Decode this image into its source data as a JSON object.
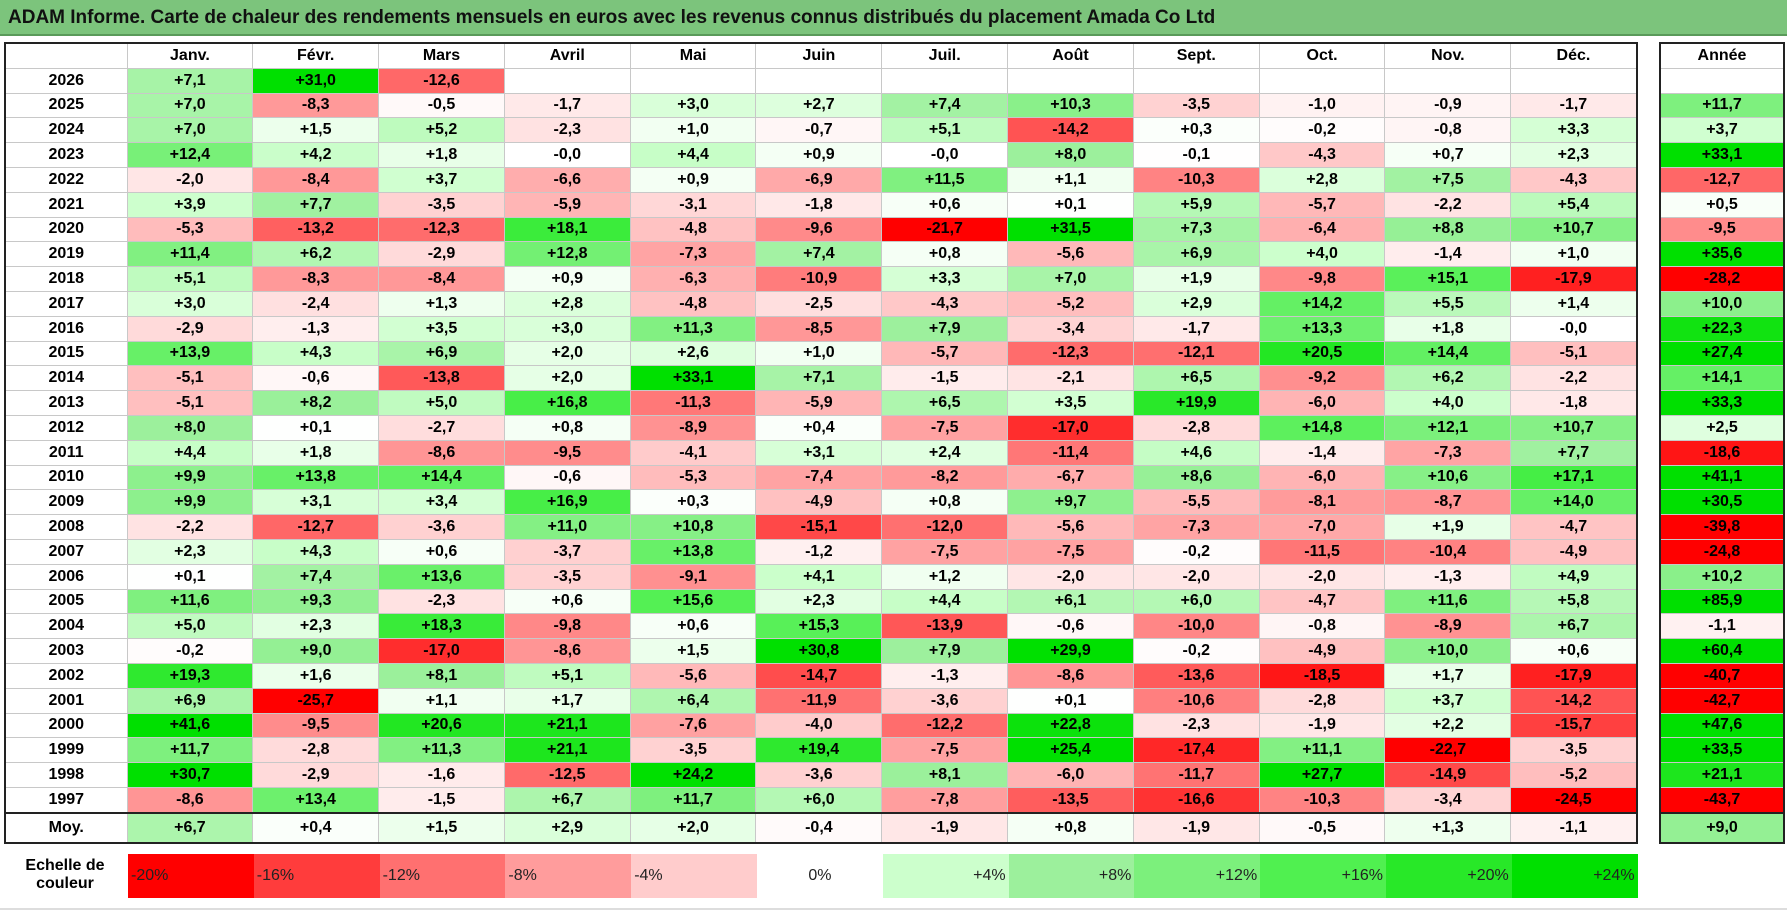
{
  "title": "ADAM Informe. Carte de chaleur des rendements mensuels en euros avec les revenus connus distribués du placement Amada Co Ltd",
  "chart_data": {
    "type": "heatmap",
    "title": "ADAM Informe. Carte de chaleur des rendements mensuels en euros avec les revenus connus distribués du placement Amada Co Ltd",
    "months": [
      "Janv.",
      "Févr.",
      "Mars",
      "Avril",
      "Mai",
      "Juin",
      "Juil.",
      "Août",
      "Sept.",
      "Oct.",
      "Nov.",
      "Déc."
    ],
    "annual_header": "Année",
    "rows": [
      {
        "year": "2026",
        "values": [
          "+7,1",
          "+31,0",
          "-12,6",
          "",
          "",
          "",
          "",
          "",
          "",
          "",
          "",
          ""
        ],
        "annual": ""
      },
      {
        "year": "2025",
        "values": [
          "+7,0",
          "-8,3",
          "-0,5",
          "-1,7",
          "+3,0",
          "+2,7",
          "+7,4",
          "+10,3",
          "-3,5",
          "-1,0",
          "-0,9",
          "-1,7"
        ],
        "annual": "+11,7"
      },
      {
        "year": "2024",
        "values": [
          "+7,0",
          "+1,5",
          "+5,2",
          "-2,3",
          "+1,0",
          "-0,7",
          "+5,1",
          "-14,2",
          "+0,3",
          "-0,2",
          "-0,8",
          "+3,3"
        ],
        "annual": "+3,7"
      },
      {
        "year": "2023",
        "values": [
          "+12,4",
          "+4,2",
          "+1,8",
          "-0,0",
          "+4,4",
          "+0,9",
          "-0,0",
          "+8,0",
          "-0,1",
          "-4,3",
          "+0,7",
          "+2,3"
        ],
        "annual": "+33,1"
      },
      {
        "year": "2022",
        "values": [
          "-2,0",
          "-8,4",
          "+3,7",
          "-6,6",
          "+0,9",
          "-6,9",
          "+11,5",
          "+1,1",
          "-10,3",
          "+2,8",
          "+7,5",
          "-4,3"
        ],
        "annual": "-12,7"
      },
      {
        "year": "2021",
        "values": [
          "+3,9",
          "+7,7",
          "-3,5",
          "-5,9",
          "-3,1",
          "-1,8",
          "+0,6",
          "+0,1",
          "+5,9",
          "-5,7",
          "-2,2",
          "+5,4"
        ],
        "annual": "+0,5"
      },
      {
        "year": "2020",
        "values": [
          "-5,3",
          "-13,2",
          "-12,3",
          "+18,1",
          "-4,8",
          "-9,6",
          "-21,7",
          "+31,5",
          "+7,3",
          "-6,4",
          "+8,8",
          "+10,7"
        ],
        "annual": "-9,5"
      },
      {
        "year": "2019",
        "values": [
          "+11,4",
          "+6,2",
          "-2,9",
          "+12,8",
          "-7,3",
          "+7,4",
          "+0,8",
          "-5,6",
          "+6,9",
          "+4,0",
          "-1,4",
          "+1,0"
        ],
        "annual": "+35,6"
      },
      {
        "year": "2018",
        "values": [
          "+5,1",
          "-8,3",
          "-8,4",
          "+0,9",
          "-6,3",
          "-10,9",
          "+3,3",
          "+7,0",
          "+1,9",
          "-9,8",
          "+15,1",
          "-17,9"
        ],
        "annual": "-28,2"
      },
      {
        "year": "2017",
        "values": [
          "+3,0",
          "-2,4",
          "+1,3",
          "+2,8",
          "-4,8",
          "-2,5",
          "-4,3",
          "-5,2",
          "+2,9",
          "+14,2",
          "+5,5",
          "+1,4"
        ],
        "annual": "+10,0"
      },
      {
        "year": "2016",
        "values": [
          "-2,9",
          "-1,3",
          "+3,5",
          "+3,0",
          "+11,3",
          "-8,5",
          "+7,9",
          "-3,4",
          "-1,7",
          "+13,3",
          "+1,8",
          "-0,0"
        ],
        "annual": "+22,3"
      },
      {
        "year": "2015",
        "values": [
          "+13,9",
          "+4,3",
          "+6,9",
          "+2,0",
          "+2,6",
          "+1,0",
          "-5,7",
          "-12,3",
          "-12,1",
          "+20,5",
          "+14,4",
          "-5,1"
        ],
        "annual": "+27,4"
      },
      {
        "year": "2014",
        "values": [
          "-5,1",
          "-0,6",
          "-13,8",
          "+2,0",
          "+33,1",
          "+7,1",
          "-1,5",
          "-2,1",
          "+6,5",
          "-9,2",
          "+6,2",
          "-2,2"
        ],
        "annual": "+14,1"
      },
      {
        "year": "2013",
        "values": [
          "-5,1",
          "+8,2",
          "+5,0",
          "+16,8",
          "-11,3",
          "-5,9",
          "+6,5",
          "+3,5",
          "+19,9",
          "-6,0",
          "+4,0",
          "-1,8"
        ],
        "annual": "+33,3"
      },
      {
        "year": "2012",
        "values": [
          "+8,0",
          "+0,1",
          "-2,7",
          "+0,8",
          "-8,9",
          "+0,4",
          "-7,5",
          "-17,0",
          "-2,8",
          "+14,8",
          "+12,1",
          "+10,7"
        ],
        "annual": "+2,5"
      },
      {
        "year": "2011",
        "values": [
          "+4,4",
          "+1,8",
          "-8,6",
          "-9,5",
          "-4,1",
          "+3,1",
          "+2,4",
          "-11,4",
          "+4,6",
          "-1,4",
          "-7,3",
          "+7,7"
        ],
        "annual": "-18,6"
      },
      {
        "year": "2010",
        "values": [
          "+9,9",
          "+13,8",
          "+14,4",
          "-0,6",
          "-5,3",
          "-7,4",
          "-8,2",
          "-6,7",
          "+8,6",
          "-6,0",
          "+10,6",
          "+17,1"
        ],
        "annual": "+41,1"
      },
      {
        "year": "2009",
        "values": [
          "+9,9",
          "+3,1",
          "+3,4",
          "+16,9",
          "+0,3",
          "-4,9",
          "+0,8",
          "+9,7",
          "-5,5",
          "-8,1",
          "-8,7",
          "+14,0"
        ],
        "annual": "+30,5"
      },
      {
        "year": "2008",
        "values": [
          "-2,2",
          "-12,7",
          "-3,6",
          "+11,0",
          "+10,8",
          "-15,1",
          "-12,0",
          "-5,6",
          "-7,3",
          "-7,0",
          "+1,9",
          "-4,7"
        ],
        "annual": "-39,8"
      },
      {
        "year": "2007",
        "values": [
          "+2,3",
          "+4,3",
          "+0,6",
          "-3,7",
          "+13,8",
          "-1,2",
          "-7,5",
          "-7,5",
          "-0,2",
          "-11,5",
          "-10,4",
          "-4,9"
        ],
        "annual": "-24,8"
      },
      {
        "year": "2006",
        "values": [
          "+0,1",
          "+7,4",
          "+13,6",
          "-3,5",
          "-9,1",
          "+4,1",
          "+1,2",
          "-2,0",
          "-2,0",
          "-2,0",
          "-1,3",
          "+4,9"
        ],
        "annual": "+10,2"
      },
      {
        "year": "2005",
        "values": [
          "+11,6",
          "+9,3",
          "-2,3",
          "+0,6",
          "+15,6",
          "+2,3",
          "+4,4",
          "+6,1",
          "+6,0",
          "-4,7",
          "+11,6",
          "+5,8"
        ],
        "annual": "+85,9"
      },
      {
        "year": "2004",
        "values": [
          "+5,0",
          "+2,3",
          "+18,3",
          "-9,8",
          "+0,6",
          "+15,3",
          "-13,9",
          "-0,6",
          "-10,0",
          "-0,8",
          "-8,9",
          "+6,7"
        ],
        "annual": "-1,1"
      },
      {
        "year": "2003",
        "values": [
          "-0,2",
          "+9,0",
          "-17,0",
          "-8,6",
          "+1,5",
          "+30,8",
          "+7,9",
          "+29,9",
          "-0,2",
          "-4,9",
          "+10,0",
          "+0,6"
        ],
        "annual": "+60,4"
      },
      {
        "year": "2002",
        "values": [
          "+19,3",
          "+1,6",
          "+8,1",
          "+5,1",
          "-5,6",
          "-14,7",
          "-1,3",
          "-8,6",
          "-13,6",
          "-18,5",
          "+1,7",
          "-17,9"
        ],
        "annual": "-40,7"
      },
      {
        "year": "2001",
        "values": [
          "+6,9",
          "-25,7",
          "+1,1",
          "+1,7",
          "+6,4",
          "-11,9",
          "-3,6",
          "+0,1",
          "-10,6",
          "-2,8",
          "+3,7",
          "-14,2"
        ],
        "annual": "-42,7"
      },
      {
        "year": "2000",
        "values": [
          "+41,6",
          "-9,5",
          "+20,6",
          "+21,1",
          "-7,6",
          "-4,0",
          "-12,2",
          "+22,8",
          "-2,3",
          "-1,9",
          "+2,2",
          "-15,7"
        ],
        "annual": "+47,6"
      },
      {
        "year": "1999",
        "values": [
          "+11,7",
          "-2,8",
          "+11,3",
          "+21,1",
          "-3,5",
          "+19,4",
          "-7,5",
          "+25,4",
          "-17,4",
          "+11,1",
          "-22,7",
          "-3,5"
        ],
        "annual": "+33,5"
      },
      {
        "year": "1998",
        "values": [
          "+30,7",
          "-2,9",
          "-1,6",
          "-12,5",
          "+24,2",
          "-3,6",
          "+8,1",
          "-6,0",
          "-11,7",
          "+27,7",
          "-14,9",
          "-5,2"
        ],
        "annual": "+21,1"
      },
      {
        "year": "1997",
        "values": [
          "-8,6",
          "+13,4",
          "-1,5",
          "+6,7",
          "+11,7",
          "+6,0",
          "-7,8",
          "-13,5",
          "-16,6",
          "-10,3",
          "-3,4",
          "-24,5"
        ],
        "annual": "-43,7"
      }
    ],
    "average": {
      "label": "Moy.",
      "values": [
        "+6,7",
        "+0,4",
        "+1,5",
        "+2,9",
        "+2,0",
        "-0,4",
        "-1,9",
        "+0,8",
        "-1,9",
        "-0,5",
        "+1,3",
        "-1,1"
      ],
      "annual": "+9,0"
    },
    "scale": {
      "label_line1": "Echelle de",
      "label_line2": "couleur",
      "steps": [
        {
          "label": "-20%",
          "value": -20,
          "color": "#ff0000"
        },
        {
          "label": "-16%",
          "value": -16,
          "color": "#ff3c3c"
        },
        {
          "label": "-12%",
          "value": -12,
          "color": "#ff7070"
        },
        {
          "label": "-8%",
          "value": -8,
          "color": "#ff9c9c"
        },
        {
          "label": "-4%",
          "value": -4,
          "color": "#ffcccc"
        },
        {
          "label": "0%",
          "value": 0,
          "color": "#ffffff"
        },
        {
          "label": "+4%",
          "value": 4,
          "color": "#ccffcc"
        },
        {
          "label": "+8%",
          "value": 8,
          "color": "#9cf09c"
        },
        {
          "label": "+12%",
          "value": 12,
          "color": "#7cf07c"
        },
        {
          "label": "+16%",
          "value": 16,
          "color": "#50f050"
        },
        {
          "label": "+20%",
          "value": 20,
          "color": "#28e828"
        },
        {
          "label": "+24%",
          "value": 24,
          "color": "#00e000"
        }
      ]
    }
  }
}
